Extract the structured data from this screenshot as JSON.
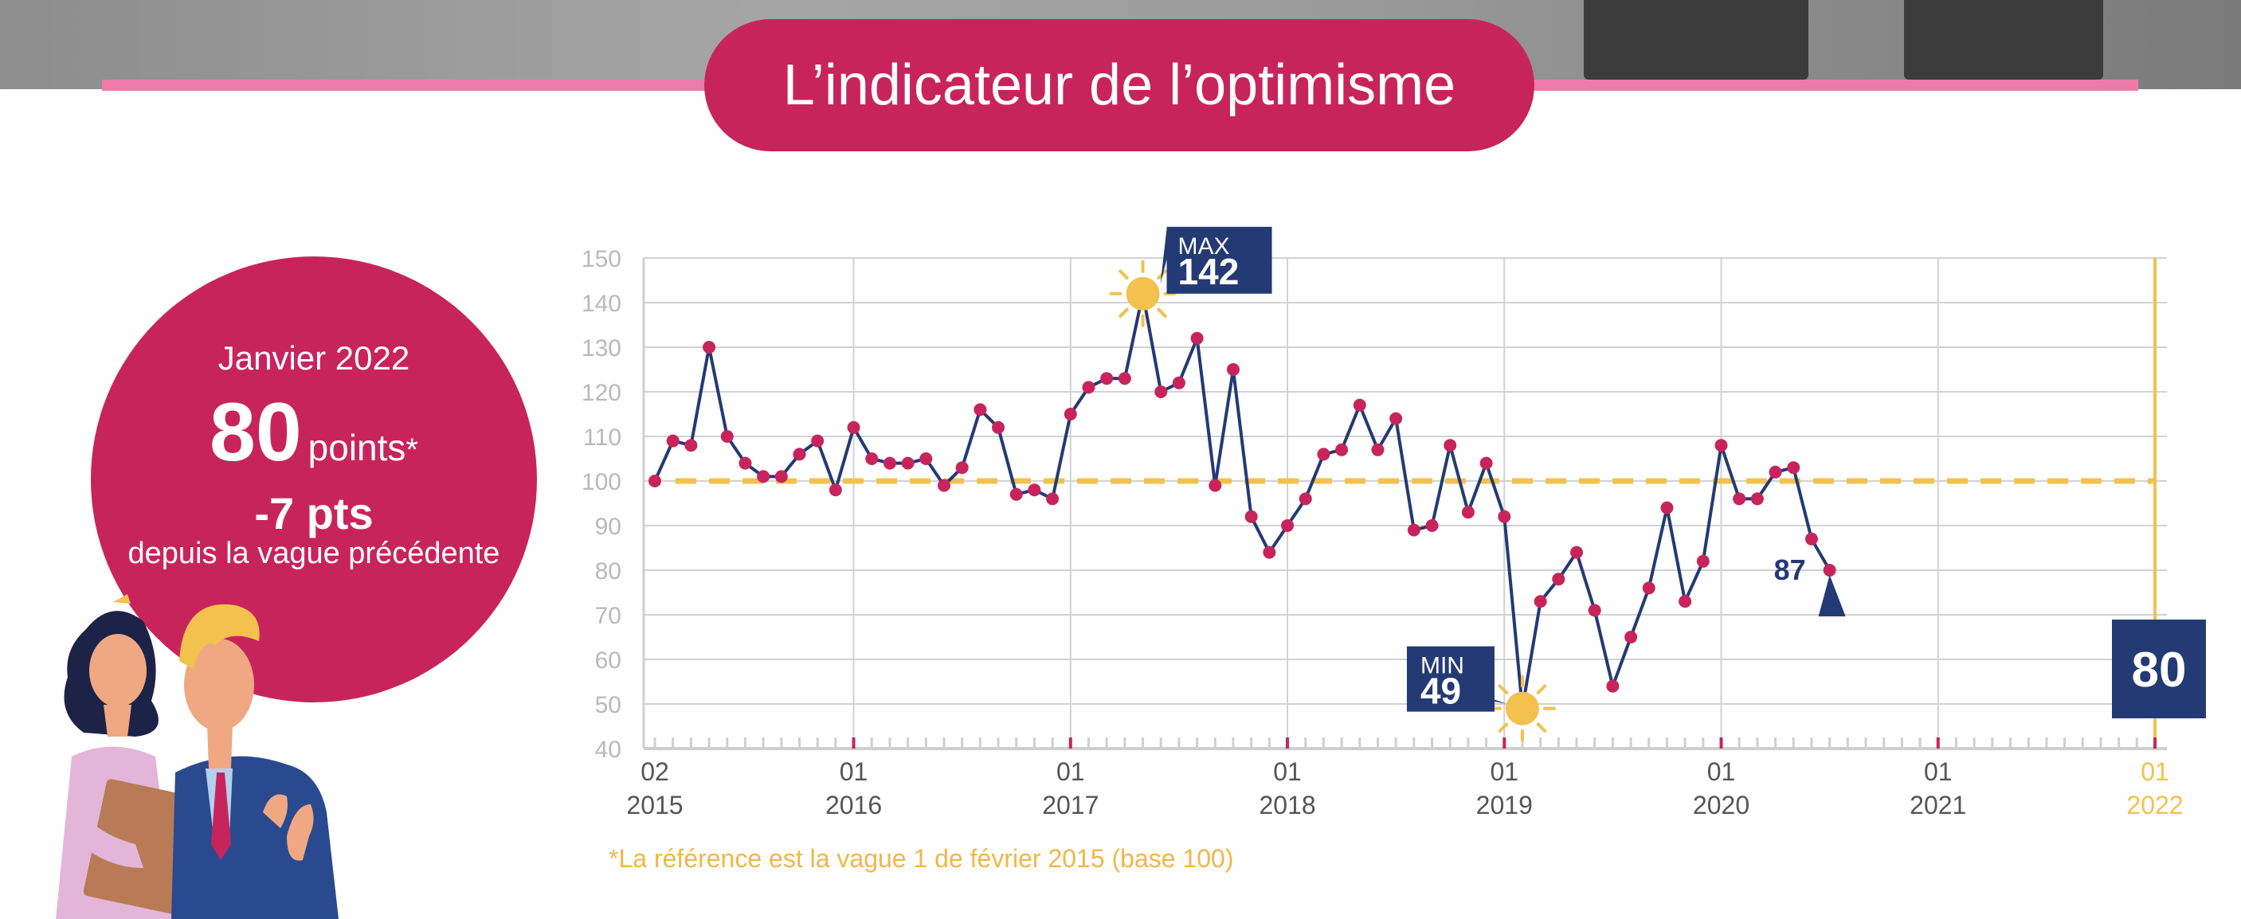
{
  "header": {
    "title": "L’indicateur de l’optimisme"
  },
  "summary": {
    "period": "Janvier 2022",
    "value": "80",
    "unit": "points",
    "asterisk": "*",
    "delta": "-7 pts",
    "delta_caption": "depuis la vague précédente"
  },
  "footnote": "*La référence est la vague 1 de février 2015 (base 100)",
  "colors": {
    "accent": "#c8245c",
    "navy": "#243a74",
    "gold": "#f2c14e",
    "pink_line": "#ef7bab"
  },
  "icons": {
    "max_marker": "sun-icon",
    "min_marker": "sun-icon"
  },
  "chart_data": {
    "type": "line",
    "reference_value": 100,
    "ylim": [
      40,
      150
    ],
    "yticks": [
      40,
      50,
      60,
      70,
      80,
      90,
      100,
      110,
      120,
      130,
      140,
      150
    ],
    "grid": true,
    "x_tick_labels": [
      {
        "month": "02",
        "year": "2015",
        "t": 0
      },
      {
        "month": "01",
        "year": "2016",
        "t": 11
      },
      {
        "month": "01",
        "year": "2017",
        "t": 23
      },
      {
        "month": "01",
        "year": "2018",
        "t": 35
      },
      {
        "month": "01",
        "year": "2019",
        "t": 47
      },
      {
        "month": "01",
        "year": "2020",
        "t": 59
      },
      {
        "month": "01",
        "year": "2021",
        "t": 71
      },
      {
        "month": "01",
        "year": "2022",
        "t": 83
      }
    ],
    "series": [
      {
        "points": [
          [
            0,
            100
          ],
          [
            1,
            109
          ],
          [
            2,
            108
          ],
          [
            3,
            130
          ],
          [
            4,
            110
          ],
          [
            5,
            104
          ],
          [
            6,
            101
          ],
          [
            7,
            101
          ],
          [
            8,
            106
          ],
          [
            9,
            109
          ],
          [
            10,
            98
          ],
          [
            11,
            112
          ],
          [
            12,
            105
          ],
          [
            13,
            104
          ],
          [
            14,
            104
          ],
          [
            15,
            105
          ],
          [
            16,
            99
          ],
          [
            17,
            103
          ],
          [
            18,
            116
          ],
          [
            19,
            112
          ],
          [
            20,
            97
          ],
          [
            21,
            98
          ],
          [
            22,
            96
          ],
          [
            23,
            115
          ],
          [
            24,
            121
          ],
          [
            25,
            123
          ],
          [
            26,
            123
          ],
          [
            27,
            142
          ],
          [
            28,
            120
          ],
          [
            29,
            122
          ],
          [
            30,
            132
          ],
          [
            31,
            99
          ],
          [
            32,
            125
          ],
          [
            33,
            92
          ],
          [
            34,
            84
          ],
          [
            35,
            90
          ],
          [
            36,
            96
          ],
          [
            37,
            106
          ],
          [
            38,
            107
          ],
          [
            39,
            117
          ],
          [
            40,
            107
          ],
          [
            41,
            114
          ],
          [
            42,
            89
          ],
          [
            43,
            90
          ],
          [
            44,
            108
          ],
          [
            45,
            93
          ],
          [
            46,
            104
          ],
          [
            47,
            92
          ],
          [
            48,
            49
          ],
          [
            49,
            73
          ],
          [
            50,
            78
          ],
          [
            51,
            84
          ],
          [
            52,
            71
          ],
          [
            53,
            54
          ],
          [
            54,
            65
          ],
          [
            55,
            76
          ],
          [
            56,
            94
          ],
          [
            57,
            73
          ],
          [
            58,
            82
          ],
          [
            59,
            108
          ],
          [
            60,
            96
          ],
          [
            61,
            96
          ],
          [
            62,
            102
          ],
          [
            63,
            103
          ],
          [
            64,
            87
          ],
          [
            65,
            80
          ]
        ]
      }
    ],
    "annotations": [
      {
        "kind": "max",
        "label": "MAX",
        "value": "142"
      },
      {
        "kind": "min",
        "label": "MIN",
        "value": "49"
      },
      {
        "kind": "previous",
        "value": "87"
      },
      {
        "kind": "latest",
        "value": "80"
      }
    ]
  }
}
